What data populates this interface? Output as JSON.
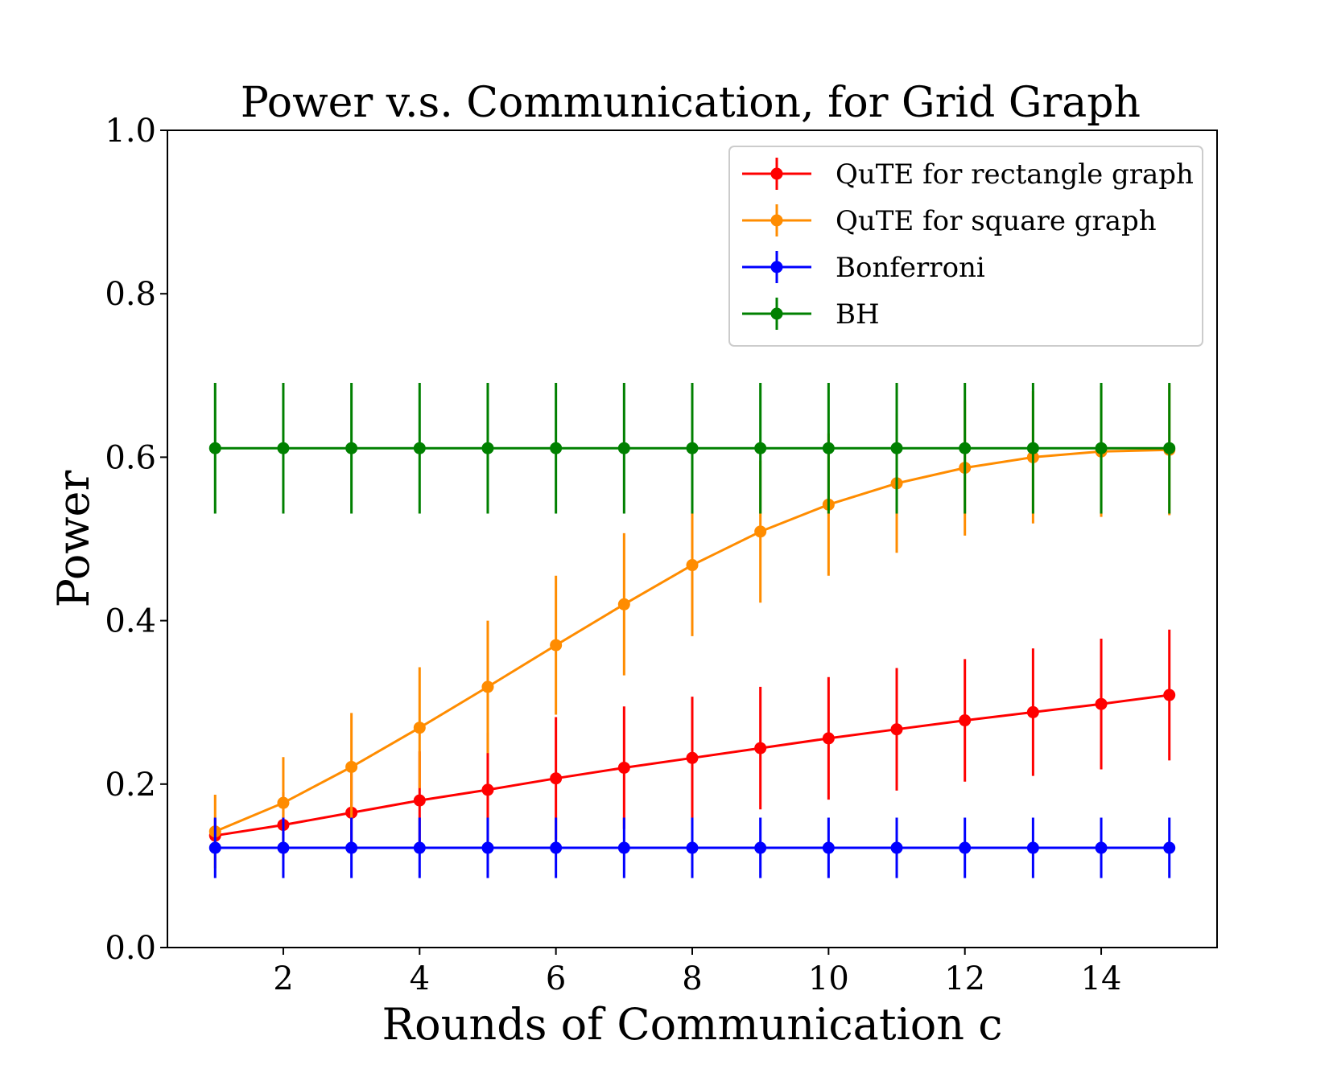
{
  "chart_data": {
    "type": "line",
    "title": "Power v.s. Communication, for Grid Graph",
    "xlabel": "Rounds of Communication c",
    "ylabel": "Power",
    "xlim": [
      0.3,
      15.7
    ],
    "ylim": [
      0.0,
      1.0
    ],
    "xticks": [
      2,
      4,
      6,
      8,
      10,
      12,
      14
    ],
    "yticks": [
      0.0,
      0.2,
      0.4,
      0.6,
      0.8,
      1.0
    ],
    "ytick_labels": [
      "0.0",
      "0.2",
      "0.4",
      "0.6",
      "0.8",
      "1.0"
    ],
    "x": [
      1,
      2,
      3,
      4,
      5,
      6,
      7,
      8,
      9,
      10,
      11,
      12,
      13,
      14,
      15
    ],
    "legend_position": "top-right",
    "series": [
      {
        "name": "QuTE for rectangle graph",
        "color": "#ff0000",
        "values": [
          0.137,
          0.15,
          0.165,
          0.18,
          0.193,
          0.207,
          0.22,
          0.232,
          0.244,
          0.256,
          0.267,
          0.278,
          0.288,
          0.298,
          0.309
        ],
        "errors": [
          0.02,
          0.04,
          0.05,
          0.06,
          0.07,
          0.075,
          0.075,
          0.075,
          0.075,
          0.075,
          0.075,
          0.075,
          0.078,
          0.08,
          0.08
        ]
      },
      {
        "name": "QuTE for square graph",
        "color": "#ff8c00",
        "values": [
          0.142,
          0.177,
          0.221,
          0.269,
          0.319,
          0.37,
          0.42,
          0.468,
          0.509,
          0.542,
          0.568,
          0.587,
          0.6,
          0.607,
          0.609
        ],
        "errors": [
          0.045,
          0.056,
          0.066,
          0.074,
          0.081,
          0.085,
          0.087,
          0.087,
          0.087,
          0.087,
          0.085,
          0.083,
          0.081,
          0.08,
          0.08
        ]
      },
      {
        "name": "Bonferroni",
        "color": "#0000ff",
        "values": [
          0.122,
          0.122,
          0.122,
          0.122,
          0.122,
          0.122,
          0.122,
          0.122,
          0.122,
          0.122,
          0.122,
          0.122,
          0.122,
          0.122,
          0.122
        ],
        "errors": [
          0.037,
          0.037,
          0.037,
          0.037,
          0.037,
          0.037,
          0.037,
          0.037,
          0.037,
          0.037,
          0.037,
          0.037,
          0.037,
          0.037,
          0.037
        ]
      },
      {
        "name": "BH",
        "color": "#008000",
        "values": [
          0.611,
          0.611,
          0.611,
          0.611,
          0.611,
          0.611,
          0.611,
          0.611,
          0.611,
          0.611,
          0.611,
          0.611,
          0.611,
          0.611,
          0.611
        ],
        "errors": [
          0.08,
          0.08,
          0.08,
          0.08,
          0.08,
          0.08,
          0.08,
          0.08,
          0.08,
          0.08,
          0.08,
          0.08,
          0.08,
          0.08,
          0.08
        ]
      }
    ]
  }
}
